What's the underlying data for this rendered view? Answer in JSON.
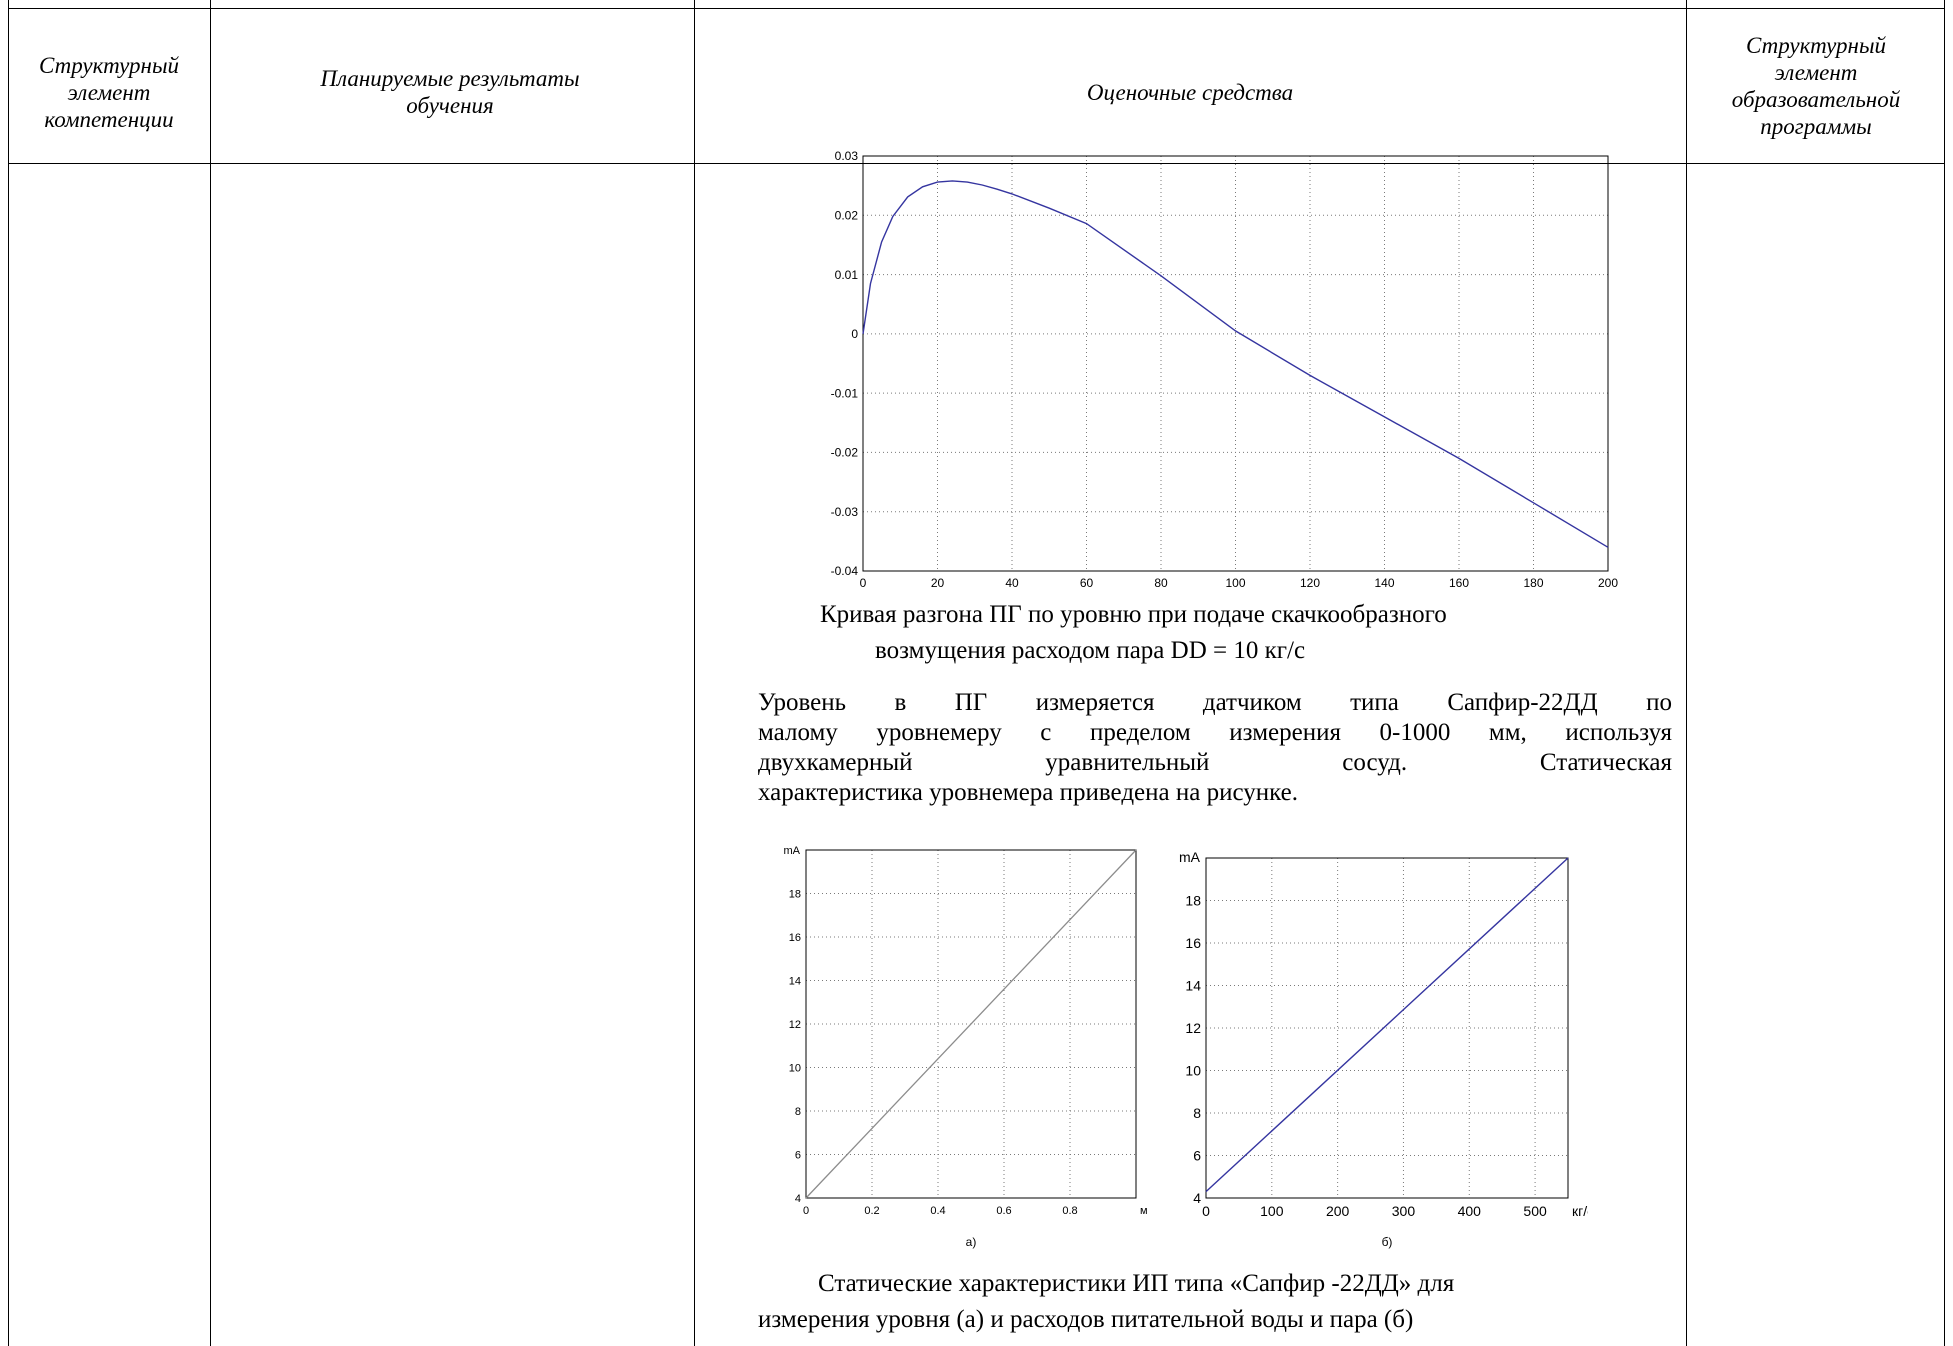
{
  "table": {
    "headers": [
      "Структурный элемент компетенции",
      "Планируемые результаты обучения",
      "Оценочные средства",
      "Структурный элемент образовательной программы"
    ]
  },
  "colors": {
    "curve": "#3535a0",
    "grid": "#7a7a7a",
    "level_line": "#8c8c8c",
    "flow_line": "#3535a0"
  },
  "chart_data": [
    {
      "type": "line",
      "title": "",
      "xlabel": "",
      "ylabel": "",
      "xlim": [
        0,
        200
      ],
      "ylim": [
        -0.04,
        0.03
      ],
      "grid": true,
      "xticks": [
        "0",
        "20",
        "40",
        "60",
        "80",
        "100",
        "120",
        "140",
        "160",
        "180",
        "200"
      ],
      "yticks": [
        "0.03",
        "0.02",
        "0.01",
        "0",
        "-0.01",
        "-0.02",
        "-0.03",
        "-0.04"
      ],
      "series": [
        {
          "x": [
            0,
            2,
            5,
            8,
            12,
            16,
            20,
            24,
            28,
            32,
            36,
            40,
            50,
            60,
            80,
            100,
            120,
            140,
            160,
            180,
            200
          ],
          "y": [
            0,
            0.0085,
            0.0155,
            0.0198,
            0.0231,
            0.0248,
            0.0256,
            0.0258,
            0.0256,
            0.0251,
            0.0244,
            0.0236,
            0.0212,
            0.0186,
            0.0098,
            0.0005,
            -0.007,
            -0.014,
            -0.021,
            -0.0285,
            -0.036
          ]
        }
      ]
    },
    {
      "type": "line",
      "title": "",
      "xlabel": "м",
      "ylabel": "mA",
      "xlim": [
        0,
        1
      ],
      "ylim": [
        4,
        20
      ],
      "grid": true,
      "xticks": [
        "0",
        "0.2",
        "0.4",
        "0.6",
        "0.8"
      ],
      "yticks": [
        "18",
        "16",
        "14",
        "12",
        "10",
        "8",
        "6",
        "4"
      ],
      "series": [
        {
          "x": [
            0,
            1
          ],
          "y": [
            4,
            20
          ]
        }
      ],
      "sublabel": "а)"
    },
    {
      "type": "line",
      "title": "",
      "xlabel": "кг/с",
      "ylabel": "mA",
      "xlim": [
        0,
        550
      ],
      "ylim": [
        4,
        20
      ],
      "grid": true,
      "xticks": [
        "0",
        "100",
        "200",
        "300",
        "400",
        "500"
      ],
      "yticks": [
        "18",
        "16",
        "14",
        "12",
        "10",
        "8",
        "6",
        "4"
      ],
      "series": [
        {
          "x": [
            0,
            550
          ],
          "y": [
            4.3,
            20
          ]
        }
      ],
      "sublabel": "б)"
    }
  ],
  "caption1": {
    "line1": "Кривая разгона ПГ по уровню при подаче скачкообразного",
    "line2": "возмущения расходом пара DD = 10 кг/с"
  },
  "paragraph": {
    "line1": "Уровень в ПГ измеряется датчиком типа Сапфир-22ДД по",
    "line2": "малому уровнемеру с пределом измерения 0-1000 мм, используя",
    "line3": "двухкамерный уравнительный сосуд. Статическая",
    "line4": "характеристика уровнемера приведена на рисунке."
  },
  "caption2": {
    "line1": "Статические характеристики ИП типа «Сапфир -22ДД» для",
    "line2": "измерения уровня (а) и расходов питательной воды и пара (б)"
  }
}
